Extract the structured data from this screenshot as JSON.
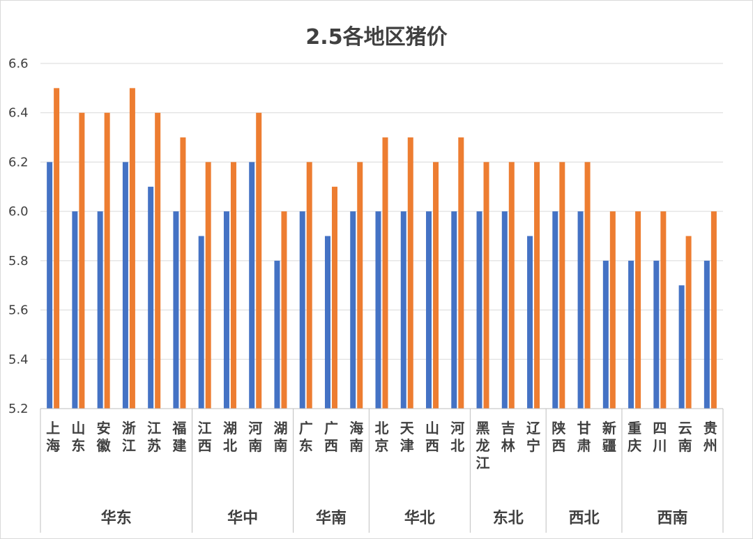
{
  "chart_data": {
    "type": "bar",
    "title": "2.5各地区猪价",
    "xlabel": "",
    "ylabel": "",
    "ylim": [
      5.2,
      6.6
    ],
    "yticks": [
      "6.6",
      "6.4",
      "6.2",
      "6.0",
      "5.8",
      "5.6",
      "5.4",
      "5.2"
    ],
    "grid": true,
    "legend": "none",
    "categories": [
      "上海",
      "山东",
      "安徽",
      "浙江",
      "江苏",
      "福建",
      "江西",
      "湖北",
      "河南",
      "湖南",
      "广东",
      "广西",
      "海南",
      "北京",
      "天津",
      "山西",
      "河北",
      "黑龙江",
      "吉林",
      "辽宁",
      "陕西",
      "甘肃",
      "新疆",
      "重庆",
      "四川",
      "云南",
      "贵州"
    ],
    "groups": [
      {
        "label": "华东",
        "count": 6
      },
      {
        "label": "华中",
        "count": 4
      },
      {
        "label": "华南",
        "count": 3
      },
      {
        "label": "华北",
        "count": 4
      },
      {
        "label": "东北",
        "count": 3
      },
      {
        "label": "西北",
        "count": 3
      },
      {
        "label": "西南",
        "count": 4
      }
    ],
    "series": [
      {
        "color": "#4472c4",
        "values": [
          6.2,
          6.0,
          6.0,
          6.2,
          6.1,
          6.0,
          5.9,
          6.0,
          6.2,
          5.8,
          6.0,
          5.9,
          6.0,
          6.0,
          6.0,
          6.0,
          6.0,
          6.0,
          6.0,
          5.9,
          6.0,
          6.0,
          5.8,
          5.8,
          5.8,
          5.7,
          5.8
        ]
      },
      {
        "color": "#ed7d31",
        "values": [
          6.5,
          6.4,
          6.4,
          6.5,
          6.4,
          6.3,
          6.2,
          6.2,
          6.4,
          6.0,
          6.2,
          6.1,
          6.2,
          6.3,
          6.3,
          6.2,
          6.3,
          6.2,
          6.2,
          6.2,
          6.2,
          6.2,
          6.0,
          6.0,
          6.0,
          5.9,
          6.0
        ]
      }
    ]
  }
}
